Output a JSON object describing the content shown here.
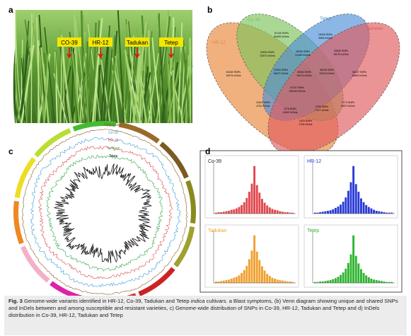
{
  "panel_labels": [
    "a",
    "b",
    "c",
    "d"
  ],
  "panel_a": {
    "labels": [
      "CO-39",
      "HR-12",
      "Tadukan",
      "Tetep"
    ]
  },
  "panel_b": {
    "sets": [
      {
        "name": "HR-12",
        "color": "#e8873a"
      },
      {
        "name": "Co-39",
        "color": "#7cc35a"
      },
      {
        "name": "Tetep",
        "color": "#4f8fd8"
      },
      {
        "name": "Tadukan",
        "color": "#e05a5e"
      }
    ],
    "regions": [
      [
        "67150 SNPs",
        "60083 InDels"
      ],
      [
        "16028 SNPs",
        "9599 InDels"
      ],
      [
        "64183 SNPs",
        "16374 InDels"
      ],
      [
        "36257 SNPs",
        "15803 InDels"
      ],
      [
        "26283 SNPs",
        "21485 InDels"
      ],
      [
        "20934 SNPs",
        "22672 InDels"
      ],
      [
        "33845 SNPs",
        "18275 InDels"
      ],
      [
        "19920 SNPs",
        "18437 InDels"
      ],
      [
        "38105 SNPs",
        "20315 InDels"
      ],
      [
        "26064 SNPs",
        "26474 InDels"
      ],
      [
        "47107 SNPs",
        "146130 InDels"
      ],
      [
        "12614 SNPs",
        "4751 InDels"
      ],
      [
        "7774 SNPs",
        "6037 InDels"
      ],
      [
        "1178 SNPs",
        "11800 InDels"
      ],
      [
        "4753 SNPs",
        "1747 InDels"
      ],
      [
        "2423 SNPs",
        "1704 InDels"
      ]
    ]
  },
  "panel_c": {
    "tracks": [
      {
        "name": "Nipponbare",
        "color": "#8a5a20"
      },
      {
        "name": "Co-39",
        "color": "#3f9bd6"
      },
      {
        "name": "HR-12",
        "color": "#d94c4c"
      },
      {
        "name": "Tadukan",
        "color": "#3aa84a"
      },
      {
        "name": "Tetep",
        "color": "#111111"
      }
    ]
  },
  "panel_d": {
    "ylim": [
      0,
      110
    ],
    "histograms": [
      {
        "name": "Co-39",
        "color": "#e0474c",
        "values": [
          2,
          3,
          3,
          4,
          5,
          6,
          8,
          9,
          11,
          14,
          18,
          24,
          33,
          46,
          63,
          100,
          60,
          44,
          31,
          23,
          17,
          13,
          10,
          8,
          7,
          5,
          4,
          3,
          3,
          2,
          2
        ]
      },
      {
        "name": "HR-12",
        "color": "#2a3bd6",
        "values": [
          2,
          2,
          3,
          4,
          5,
          6,
          7,
          9,
          12,
          15,
          19,
          25,
          34,
          48,
          66,
          100,
          62,
          46,
          32,
          24,
          18,
          14,
          11,
          8,
          6,
          5,
          4,
          3,
          2,
          2,
          2
        ]
      },
      {
        "name": "Tadukan",
        "color": "#f0a030",
        "values": [
          3,
          3,
          4,
          5,
          6,
          7,
          9,
          11,
          13,
          16,
          21,
          27,
          36,
          50,
          68,
          100,
          66,
          48,
          35,
          26,
          19,
          15,
          11,
          9,
          7,
          6,
          5,
          4,
          3,
          3,
          2
        ]
      },
      {
        "name": "Tetep",
        "color": "#2fb52f",
        "values": [
          2,
          2,
          3,
          3,
          4,
          5,
          6,
          8,
          10,
          13,
          17,
          22,
          30,
          42,
          60,
          100,
          57,
          41,
          29,
          21,
          16,
          12,
          9,
          7,
          6,
          5,
          4,
          3,
          2,
          2,
          2
        ]
      }
    ]
  },
  "caption": {
    "label": "Fig. 3",
    "part1": "Genome-wide variants identified in HR-12, Co-39, Tadukan and Tetep",
    "italic": "indica",
    "part2": "cultivars. a Blast symptoms, (b) Venn diagram showing unique and shared SNPs and InDels between and among susceptible and resistant varieties, c) Genome-wide distribution of SNPs in Co-39, HR-12, Tadukan and Tetep and d) InDels distribution in Co-39, HR-12, Tadukan and Tetep"
  }
}
